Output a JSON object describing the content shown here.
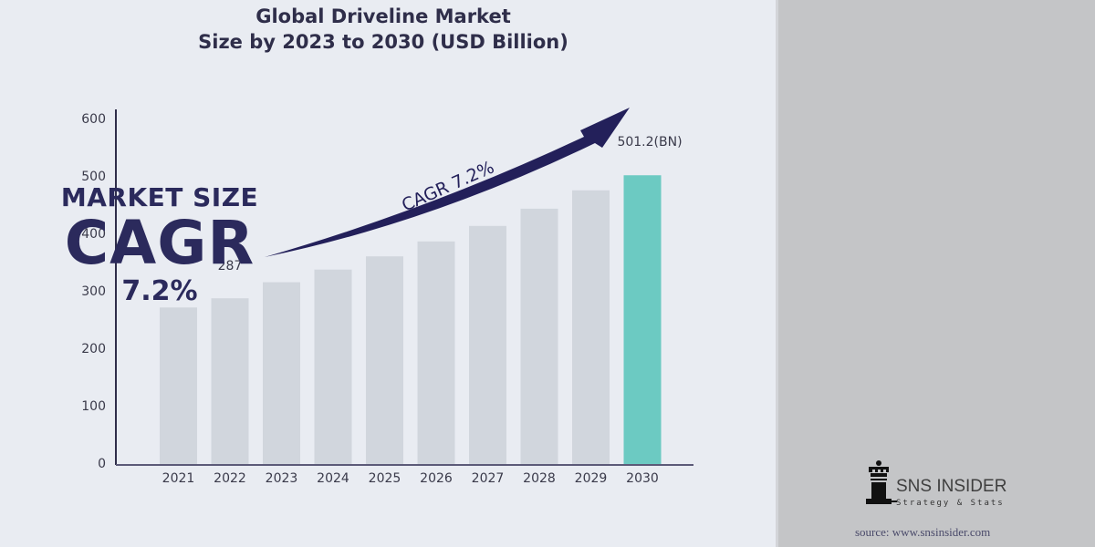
{
  "right_panel": {
    "line1": "MARKET SIZE",
    "line2": "CAGR",
    "line3": "7.2%"
  },
  "brand": {
    "name": "SNS INSIDER",
    "tagline": "Strategy & Stats",
    "source": "source: www.snsinsider.com"
  },
  "colors": {
    "bar": "#d1d6dd",
    "highlight_bar": "#6ccac2",
    "accent": "#23205a",
    "text": "#2f2e4a"
  },
  "chart_data": {
    "type": "bar",
    "title": "Global Driveline Market Size by 2023 to 2030 (USD Billion)",
    "title_lines": [
      "Global Driveline Market",
      "Size by 2023 to 2030 (USD Billion)"
    ],
    "xlabel": "",
    "ylabel": "",
    "categories": [
      "2021",
      "2022",
      "2023",
      "2024",
      "2025",
      "2026",
      "2027",
      "2028",
      "2029",
      "2030"
    ],
    "values": [
      271,
      287,
      315,
      337,
      360,
      386,
      413,
      443,
      475,
      501.2
    ],
    "highlight_index": 9,
    "ylim": [
      0,
      600
    ],
    "yticks": [
      0,
      100,
      200,
      300,
      400,
      500,
      600
    ],
    "grid": false,
    "annotations": [
      {
        "text": "287",
        "category": "2022"
      },
      {
        "text": "501.2(BN)",
        "category": "2030"
      },
      {
        "text": "CAGR 7.2%",
        "type": "growth-arrow"
      }
    ]
  }
}
